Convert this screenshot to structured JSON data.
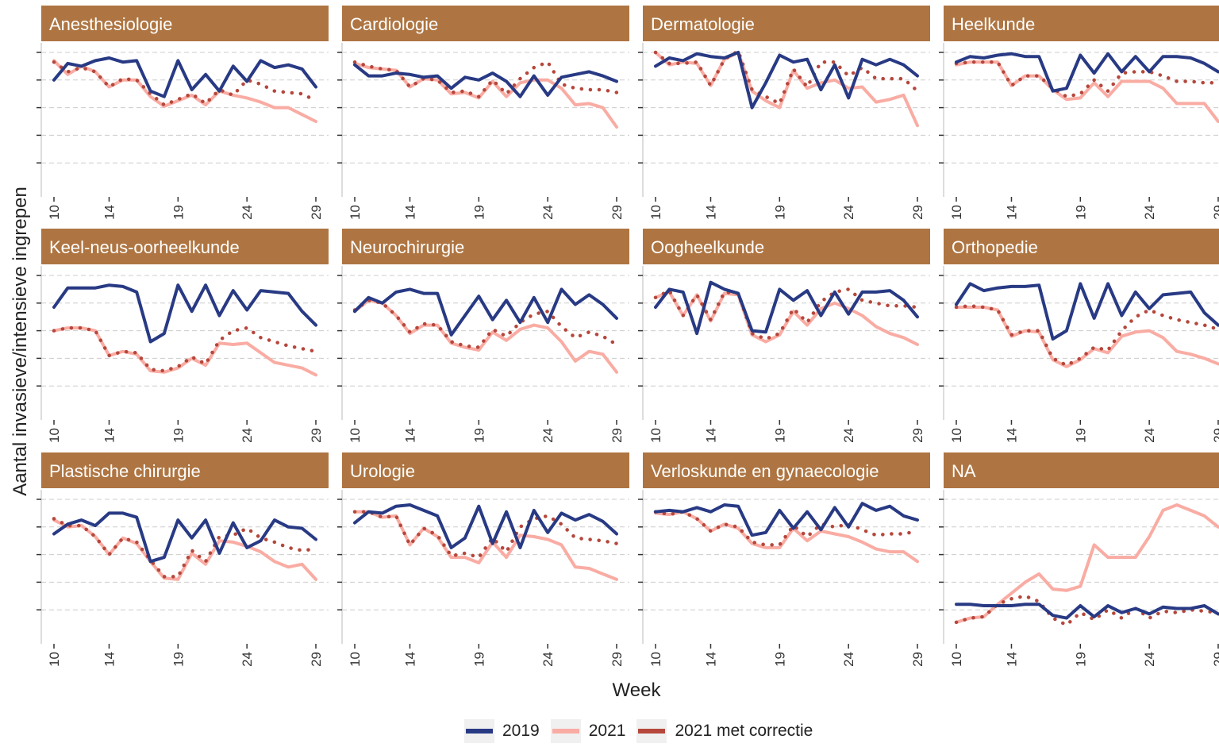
{
  "colors": {
    "s2019": "#283a84",
    "s2021": "#f9aca3",
    "s2021c": "#b5473c",
    "strip": "#ae7542",
    "grid": "#cccccc"
  },
  "chart_data": {
    "type": "line",
    "ylabel": "Aantal invasieve/intensieve ingrepen",
    "xlabel": "Week",
    "x": [
      10,
      11,
      12,
      13,
      14,
      15,
      16,
      17,
      18,
      19,
      20,
      21,
      22,
      23,
      24,
      25,
      26,
      27,
      28,
      29
    ],
    "xticks": [
      "10",
      "14",
      "19",
      "24",
      "29"
    ],
    "legend": [
      "2019",
      "2021",
      "2021 met correctie"
    ],
    "legend_position": "bottom",
    "panels": [
      {
        "title": "Anesthesiologie",
        "ylim": [
          0,
          100
        ],
        "series": [
          {
            "name": "2019",
            "values": [
              80,
              92,
              90,
              94,
              96,
              93,
              94,
              72,
              68,
              94,
              73,
              84,
              72,
              90,
              79,
              94,
              89,
              91,
              88,
              75
            ]
          },
          {
            "name": "2021",
            "values": [
              94,
              84,
              90,
              86,
              75,
              80,
              80,
              68,
              61,
              65,
              69,
              62,
              72,
              69,
              67,
              64,
              60,
              60,
              55,
              50
            ]
          },
          {
            "name": "2021 met correctie",
            "values": [
              93,
              86,
              89,
              86,
              75,
              81,
              80,
              70,
              62,
              66,
              70,
              63,
              73,
              69,
              80,
              77,
              72,
              71,
              70,
              65
            ]
          }
        ]
      },
      {
        "title": "Cardiologie",
        "ylim": [
          0,
          100
        ],
        "series": [
          {
            "name": "2019",
            "values": [
              91,
              83,
              83,
              85,
              84,
              82,
              83,
              74,
              82,
              80,
              85,
              79,
              68,
              83,
              69,
              82,
              84,
              86,
              83,
              79
            ]
          },
          {
            "name": "2021",
            "values": [
              92,
              89,
              88,
              87,
              75,
              81,
              80,
              70,
              71,
              67,
              79,
              68,
              78,
              80,
              80,
              74,
              62,
              63,
              60,
              46
            ]
          },
          {
            "name": "2021 met correctie",
            "values": [
              93,
              90,
              88,
              87,
              75,
              81,
              80,
              71,
              72,
              68,
              80,
              70,
              81,
              89,
              93,
              77,
              74,
              73,
              73,
              71
            ]
          }
        ]
      },
      {
        "title": "Dermatologie",
        "ylim": [
          0,
          100
        ],
        "series": [
          {
            "name": "2019",
            "values": [
              90,
              96,
              94,
              99,
              97,
              96,
              100,
              60,
              78,
              98,
              93,
              95,
              73,
              91,
              67,
              95,
              91,
              95,
              91,
              83
            ]
          },
          {
            "name": "2021",
            "values": [
              100,
              91,
              93,
              92,
              76,
              95,
              100,
              72,
              65,
              60,
              87,
              74,
              78,
              80,
              74,
              75,
              64,
              66,
              69,
              47
            ]
          },
          {
            "name": "2021 met correctie",
            "values": [
              100,
              92,
              92,
              93,
              76,
              95,
              101,
              73,
              68,
              63,
              88,
              75,
              93,
              93,
              83,
              89,
              81,
              81,
              81,
              72
            ]
          }
        ]
      },
      {
        "title": "Heelkunde",
        "ylim": [
          0,
          100
        ],
        "series": [
          {
            "name": "2019",
            "values": [
              93,
              97,
              96,
              98,
              99,
              97,
              97,
              72,
              74,
              98,
              85,
              99,
              86,
              97,
              86,
              97,
              97,
              96,
              92,
              86
            ]
          },
          {
            "name": "2021",
            "values": [
              91,
              93,
              93,
              93,
              76,
              83,
              83,
              73,
              66,
              67,
              78,
              68,
              79,
              79,
              79,
              74,
              63,
              63,
              63,
              50
            ]
          },
          {
            "name": "2021 met correctie",
            "values": [
              92,
              93,
              93,
              93,
              76,
              83,
              83,
              74,
              68,
              70,
              80,
              72,
              85,
              86,
              86,
              83,
              79,
              79,
              78,
              78
            ]
          }
        ]
      },
      {
        "title": "Keel-neus-oorheelkunde",
        "ylim": [
          0,
          100
        ],
        "series": [
          {
            "name": "2019",
            "values": [
              77,
              91,
              91,
              91,
              93,
              92,
              88,
              52,
              58,
              93,
              74,
              93,
              71,
              89,
              75,
              89,
              88,
              87,
              74,
              64
            ]
          },
          {
            "name": "2021",
            "values": [
              60,
              62,
              62,
              60,
              42,
              45,
              43,
              31,
              30,
              33,
              40,
              35,
              51,
              50,
              51,
              44,
              37,
              35,
              33,
              28
            ]
          },
          {
            "name": "2021 met correctie",
            "values": [
              60,
              62,
              62,
              60,
              42,
              45,
              44,
              32,
              31,
              34,
              41,
              36,
              53,
              60,
              62,
              55,
              52,
              49,
              47,
              45
            ]
          }
        ]
      },
      {
        "title": "Neurochirurgie",
        "ylim": [
          0,
          100
        ],
        "series": [
          {
            "name": "2019",
            "values": [
              74,
              84,
              80,
              88,
              90,
              87,
              87,
              57,
              71,
              85,
              68,
              82,
              66,
              84,
              66,
              90,
              79,
              86,
              79,
              69
            ]
          },
          {
            "name": "2021",
            "values": [
              74,
              82,
              80,
              71,
              58,
              64,
              64,
              51,
              48,
              46,
              59,
              53,
              61,
              64,
              62,
              52,
              38,
              45,
              43,
              30
            ]
          },
          {
            "name": "2021 met correctie",
            "values": [
              75,
              82,
              80,
              71,
              59,
              65,
              64,
              52,
              49,
              48,
              61,
              56,
              66,
              72,
              74,
              63,
              55,
              59,
              56,
              50
            ]
          }
        ]
      },
      {
        "title": "Oogheelkunde",
        "ylim": [
          0,
          100
        ],
        "series": [
          {
            "name": "2019",
            "values": [
              77,
              90,
              88,
              58,
              95,
              90,
              87,
              60,
              59,
              90,
              82,
              89,
              71,
              88,
              72,
              88,
              88,
              89,
              82,
              70
            ]
          },
          {
            "name": "2021",
            "values": [
              84,
              88,
              71,
              86,
              67,
              87,
              86,
              57,
              52,
              57,
              74,
              64,
              76,
              80,
              76,
              71,
              63,
              58,
              55,
              50
            ]
          },
          {
            "name": "2021 met correctie",
            "values": [
              84,
              89,
              71,
              86,
              68,
              88,
              87,
              58,
              54,
              58,
              76,
              66,
              81,
              88,
              90,
              82,
              80,
              78,
              78,
              77
            ]
          }
        ]
      },
      {
        "title": "Orthopedie",
        "ylim": [
          0,
          100
        ],
        "series": [
          {
            "name": "2019",
            "values": [
              79,
              94,
              89,
              91,
              92,
              92,
              93,
              54,
              60,
              94,
              69,
              94,
              71,
              88,
              76,
              86,
              87,
              88,
              73,
              64
            ]
          },
          {
            "name": "2021",
            "values": [
              77,
              77,
              77,
              75,
              56,
              60,
              59,
              39,
              34,
              39,
              47,
              44,
              56,
              59,
              60,
              55,
              45,
              43,
              40,
              36
            ]
          },
          {
            "name": "2021 met correctie",
            "values": [
              77,
              78,
              77,
              75,
              57,
              60,
              60,
              40,
              35,
              40,
              48,
              46,
              60,
              70,
              75,
              71,
              68,
              66,
              64,
              61
            ]
          }
        ]
      },
      {
        "title": "Plastische chirurgie",
        "ylim": [
          0,
          100
        ],
        "series": [
          {
            "name": "2019",
            "values": [
              75,
              82,
              85,
              81,
              90,
              90,
              87,
              55,
              58,
              85,
              72,
              85,
              61,
              83,
              65,
              70,
              85,
              80,
              79,
              71
            ]
          },
          {
            "name": "2021",
            "values": [
              85,
              80,
              81,
              73,
              60,
              72,
              68,
              55,
              43,
              42,
              61,
              53,
              70,
              69,
              66,
              62,
              55,
              51,
              53,
              42
            ]
          },
          {
            "name": "2021 met correctie",
            "values": [
              86,
              81,
              81,
              73,
              60,
              72,
              69,
              56,
              44,
              44,
              63,
              55,
              73,
              74,
              79,
              72,
              69,
              65,
              63,
              64
            ]
          }
        ]
      },
      {
        "title": "Urologie",
        "ylim": [
          0,
          100
        ],
        "series": [
          {
            "name": "2019",
            "values": [
              83,
              91,
              90,
              95,
              96,
              92,
              88,
              65,
              72,
              95,
              68,
              91,
              65,
              92,
              76,
              90,
              85,
              89,
              84,
              75
            ]
          },
          {
            "name": "2021",
            "values": [
              91,
              91,
              87,
              88,
              67,
              79,
              73,
              58,
              58,
              54,
              69,
              58,
              74,
              73,
              71,
              67,
              51,
              50,
              46,
              42
            ]
          },
          {
            "name": "2021 met correctie",
            "values": [
              91,
              91,
              87,
              88,
              67,
              79,
              74,
              59,
              61,
              58,
              72,
              62,
              80,
              86,
              88,
              82,
              72,
              71,
              70,
              68
            ]
          }
        ]
      },
      {
        "title": "Verloskunde en gynaecologie",
        "ylim": [
          0,
          100
        ],
        "series": [
          {
            "name": "2019",
            "values": [
              91,
              92,
              91,
              94,
              91,
              96,
              95,
              74,
              76,
              92,
              79,
              91,
              78,
              94,
              80,
              97,
              92,
              95,
              88,
              85
            ]
          },
          {
            "name": "2021",
            "values": [
              90,
              89,
              91,
              86,
              77,
              82,
              79,
              68,
              65,
              65,
              79,
              70,
              77,
              75,
              73,
              69,
              64,
              62,
              62,
              55
            ]
          },
          {
            "name": "2021 met correctie",
            "values": [
              91,
              89,
              91,
              86,
              77,
              82,
              80,
              69,
              67,
              67,
              81,
              73,
              82,
              80,
              82,
              78,
              74,
              75,
              75,
              77
            ]
          }
        ]
      },
      {
        "title": "NA",
        "ylim": [
          0,
          100
        ],
        "series": [
          {
            "name": "2019",
            "values": [
              24,
              24,
              23,
              23,
              23,
              24,
              24,
              16,
              14,
              23,
              15,
              23,
              18,
              21,
              17,
              22,
              21,
              21,
              23,
              17
            ]
          },
          {
            "name": "2021",
            "values": [
              11,
              14,
              15,
              24,
              32,
              40,
              46,
              35,
              34,
              37,
              67,
              58,
              58,
              58,
              73,
              92,
              96,
              92,
              88,
              80
            ]
          },
          {
            "name": "2021 met correctie",
            "values": [
              11,
              14,
              15,
              24,
              28,
              30,
              26,
              14,
              9,
              18,
              13,
              20,
              14,
              21,
              14,
              19,
              18,
              20,
              19,
              18
            ]
          }
        ]
      }
    ]
  }
}
